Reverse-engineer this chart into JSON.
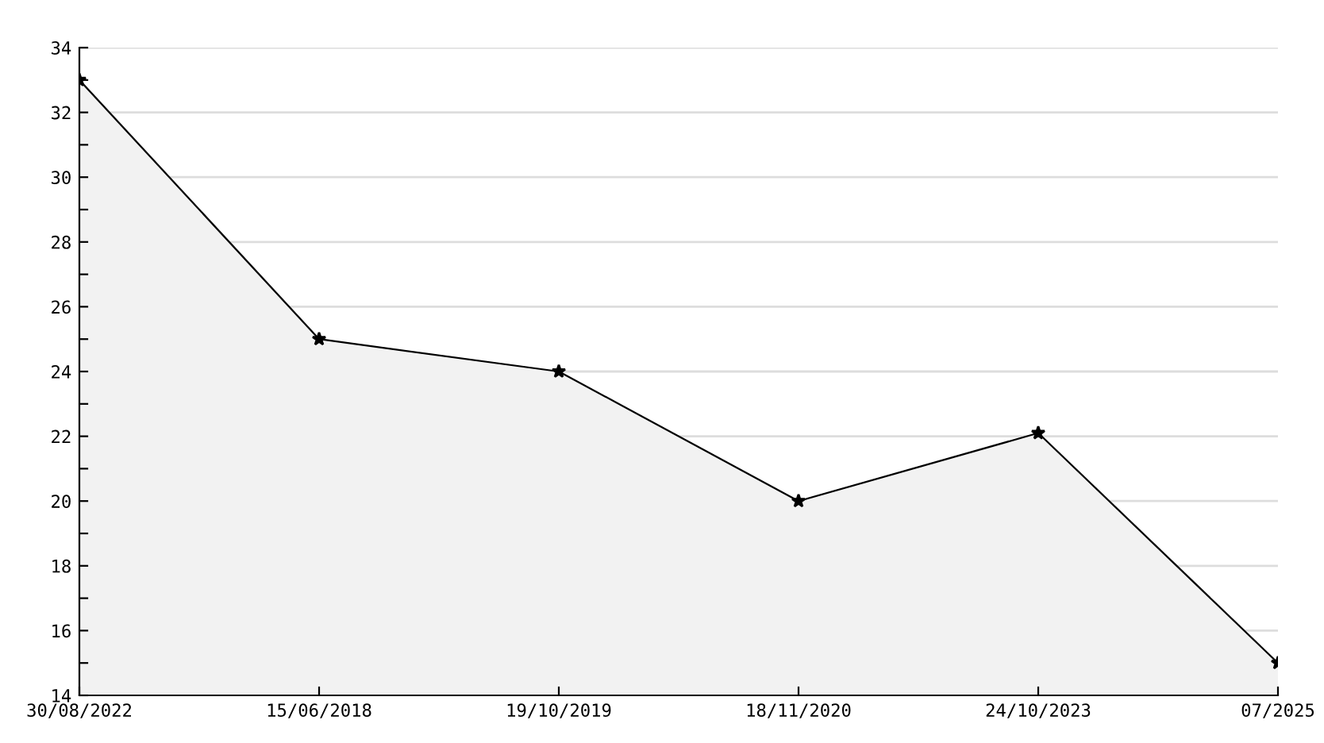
{
  "chart_data": {
    "type": "area",
    "categories": [
      "30/08/2022",
      "15/06/2018",
      "19/10/2019",
      "18/11/2020",
      "24/10/2023",
      "07/2025"
    ],
    "series": [
      {
        "color": "#000000",
        "values": [
          33,
          25,
          24,
          20,
          22.1,
          15
        ]
      }
    ],
    "ylim": [
      14,
      34
    ],
    "yticks": [
      14,
      {
        "value": 15,
        "label": null
      },
      16,
      {
        "value": 17,
        "label": null
      },
      18,
      {
        "value": 19,
        "label": null
      },
      20,
      {
        "value": 21,
        "label": null
      },
      22,
      {
        "value": 23,
        "label": null
      },
      24,
      {
        "value": 25,
        "label": null
      },
      26,
      {
        "value": 27,
        "label": null
      },
      28,
      {
        "value": 29,
        "label": null
      },
      30,
      {
        "value": 31,
        "label": null
      },
      32,
      {
        "value": 33,
        "label": null
      },
      34
    ],
    "grid": "y",
    "marker": "star",
    "line_style": "solid",
    "legend": false
  }
}
